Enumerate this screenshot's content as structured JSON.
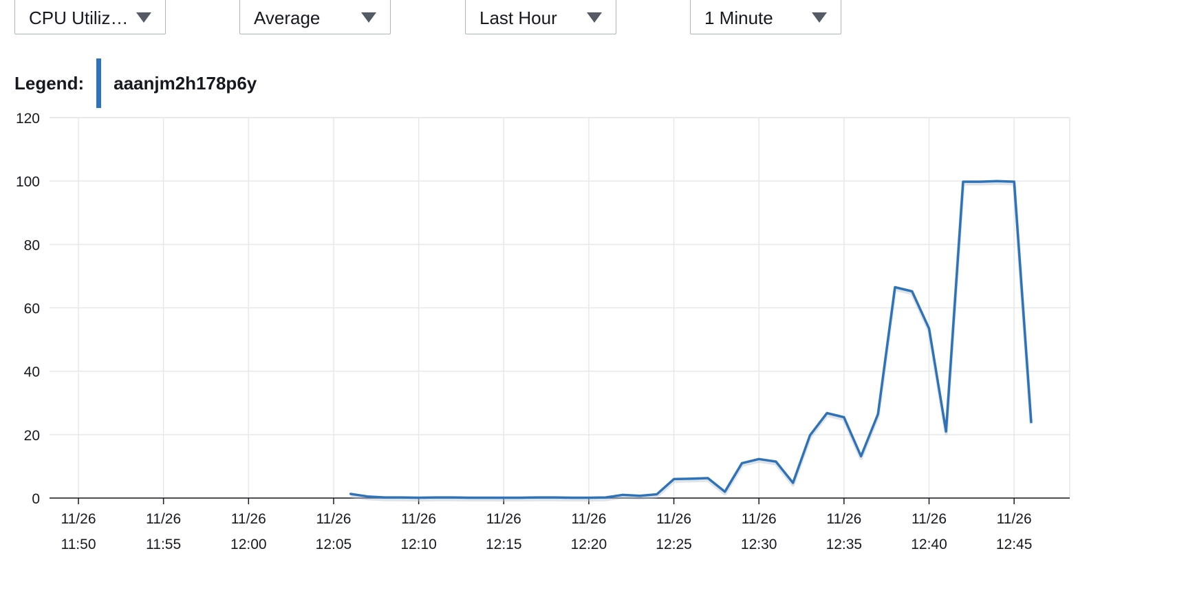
{
  "controls": {
    "metric": {
      "label": "CPU Utiliz…",
      "icon": "caret-down-icon"
    },
    "statistic": {
      "label": "Average",
      "icon": "caret-down-icon"
    },
    "range": {
      "label": "Last Hour",
      "icon": "caret-down-icon"
    },
    "period": {
      "label": "1 Minute",
      "icon": "caret-down-icon"
    }
  },
  "legend": {
    "title": "Legend:",
    "entry": "aaanjm2h178p6y",
    "color": "#2e73b8"
  },
  "chart_data": {
    "type": "line",
    "x_date": "11/26",
    "x_ticks": [
      "11:50",
      "11:55",
      "12:00",
      "12:05",
      "12:10",
      "12:15",
      "12:20",
      "12:25",
      "12:30",
      "12:35",
      "12:40",
      "12:45"
    ],
    "y_ticks": [
      0,
      20,
      40,
      60,
      80,
      100,
      120
    ],
    "ylim": [
      0,
      120
    ],
    "xlim": [
      "11:50",
      "12:46"
    ],
    "grid": true,
    "legend_position": "top-left",
    "series": [
      {
        "name": "aaanjm2h178p6y",
        "color": "#2e73b8",
        "points": [
          [
            "12:06",
            1.3
          ],
          [
            "12:07",
            0.5
          ],
          [
            "12:08",
            0.2
          ],
          [
            "12:09",
            0.2
          ],
          [
            "12:10",
            0.1
          ],
          [
            "12:11",
            0.2
          ],
          [
            "12:12",
            0.2
          ],
          [
            "12:13",
            0.1
          ],
          [
            "12:14",
            0.1
          ],
          [
            "12:15",
            0.1
          ],
          [
            "12:16",
            0.1
          ],
          [
            "12:17",
            0.2
          ],
          [
            "12:18",
            0.2
          ],
          [
            "12:19",
            0.1
          ],
          [
            "12:20",
            0.1
          ],
          [
            "12:21",
            0.2
          ],
          [
            "12:22",
            1.0
          ],
          [
            "12:23",
            0.7
          ],
          [
            "12:24",
            1.2
          ],
          [
            "12:25",
            6.0
          ],
          [
            "12:26",
            6.1
          ],
          [
            "12:27",
            6.3
          ],
          [
            "12:28",
            2.0
          ],
          [
            "12:29",
            11.0
          ],
          [
            "12:30",
            12.3
          ],
          [
            "12:31",
            11.5
          ],
          [
            "12:32",
            4.8
          ],
          [
            "12:33",
            19.8
          ],
          [
            "12:34",
            26.8
          ],
          [
            "12:35",
            25.5
          ],
          [
            "12:36",
            13.2
          ],
          [
            "12:37",
            26.5
          ],
          [
            "12:38",
            66.5
          ],
          [
            "12:39",
            65.2
          ],
          [
            "12:40",
            53.5
          ],
          [
            "12:41",
            21.0
          ],
          [
            "12:42",
            99.8
          ],
          [
            "12:43",
            99.8
          ],
          [
            "12:44",
            100.0
          ],
          [
            "12:45",
            99.8
          ],
          [
            "12:46",
            24.0
          ]
        ]
      }
    ]
  }
}
